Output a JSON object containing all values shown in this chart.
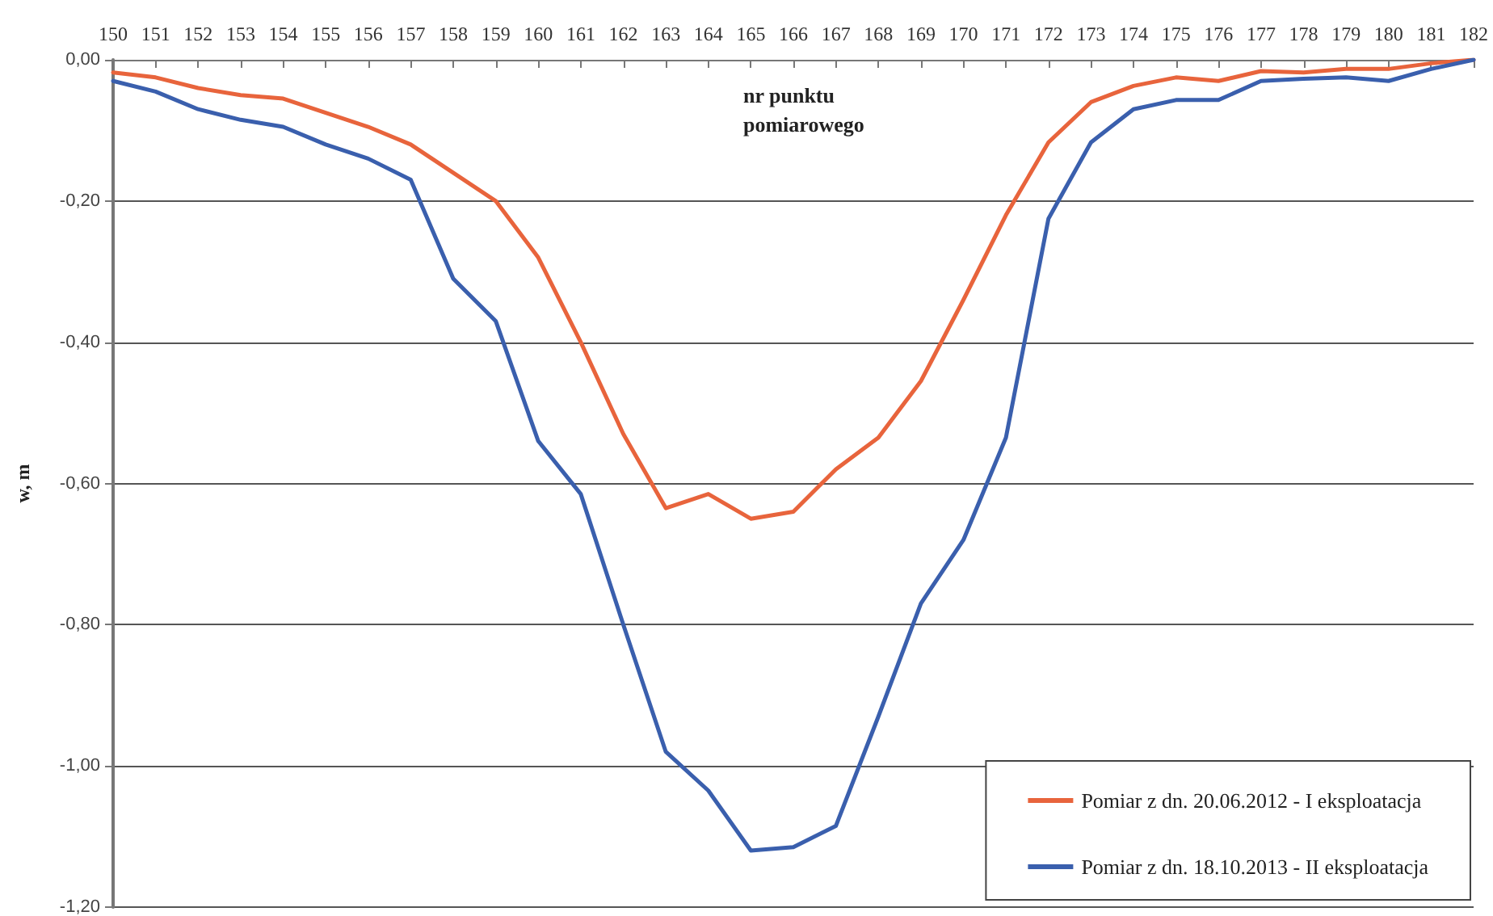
{
  "chart_data": {
    "type": "line",
    "xlabel": "nr punktu pomiarowego",
    "ylabel": "w, m",
    "categories": [
      "150",
      "151",
      "152",
      "153",
      "154",
      "155",
      "156",
      "157",
      "158",
      "159",
      "160",
      "161",
      "162",
      "163",
      "164",
      "165",
      "166",
      "167",
      "168",
      "169",
      "170",
      "171",
      "172",
      "173",
      "174",
      "175",
      "176",
      "177",
      "178",
      "179",
      "180",
      "181",
      "182"
    ],
    "series": [
      {
        "name": "Pomiar z dn. 20.06.2012 - I eksploatacja",
        "color": "#e8643c",
        "values": [
          -0.018,
          -0.025,
          -0.04,
          -0.05,
          -0.055,
          -0.075,
          -0.095,
          -0.12,
          -0.16,
          -0.2,
          -0.28,
          -0.4,
          -0.53,
          -0.635,
          -0.615,
          -0.65,
          -0.64,
          -0.58,
          -0.535,
          -0.455,
          -0.34,
          -0.22,
          -0.117,
          -0.06,
          -0.037,
          -0.025,
          -0.03,
          -0.016,
          -0.018,
          -0.013,
          -0.013,
          -0.005,
          0
        ]
      },
      {
        "name": "Pomiar z dn. 18.10.2013 - II eksploatacja",
        "color": "#3a5fad",
        "values": [
          -0.03,
          -0.045,
          -0.07,
          -0.085,
          -0.095,
          -0.12,
          -0.14,
          -0.17,
          -0.31,
          -0.37,
          -0.54,
          -0.615,
          -0.8,
          -0.98,
          -1.035,
          -1.12,
          -1.115,
          -1.085,
          -0.93,
          -0.77,
          -0.68,
          -0.535,
          -0.225,
          -0.117,
          -0.07,
          -0.057,
          -0.057,
          -0.03,
          -0.027,
          -0.025,
          -0.03,
          -0.013,
          0
        ]
      }
    ],
    "ylim": [
      -1.2,
      0
    ],
    "yticks": [
      {
        "value": -1.2,
        "label": "-1,20"
      },
      {
        "value": -1.0,
        "label": "-1,00"
      },
      {
        "value": -0.8,
        "label": "-0,80"
      },
      {
        "value": -0.6,
        "label": "-0,60"
      },
      {
        "value": -0.4,
        "label": "-0,40"
      },
      {
        "value": -0.2,
        "label": "-0,20"
      },
      {
        "value": 0,
        "label": "0,00"
      }
    ],
    "grid": "y",
    "legend": "bottom right",
    "marker": "none",
    "line_style": "solid"
  }
}
